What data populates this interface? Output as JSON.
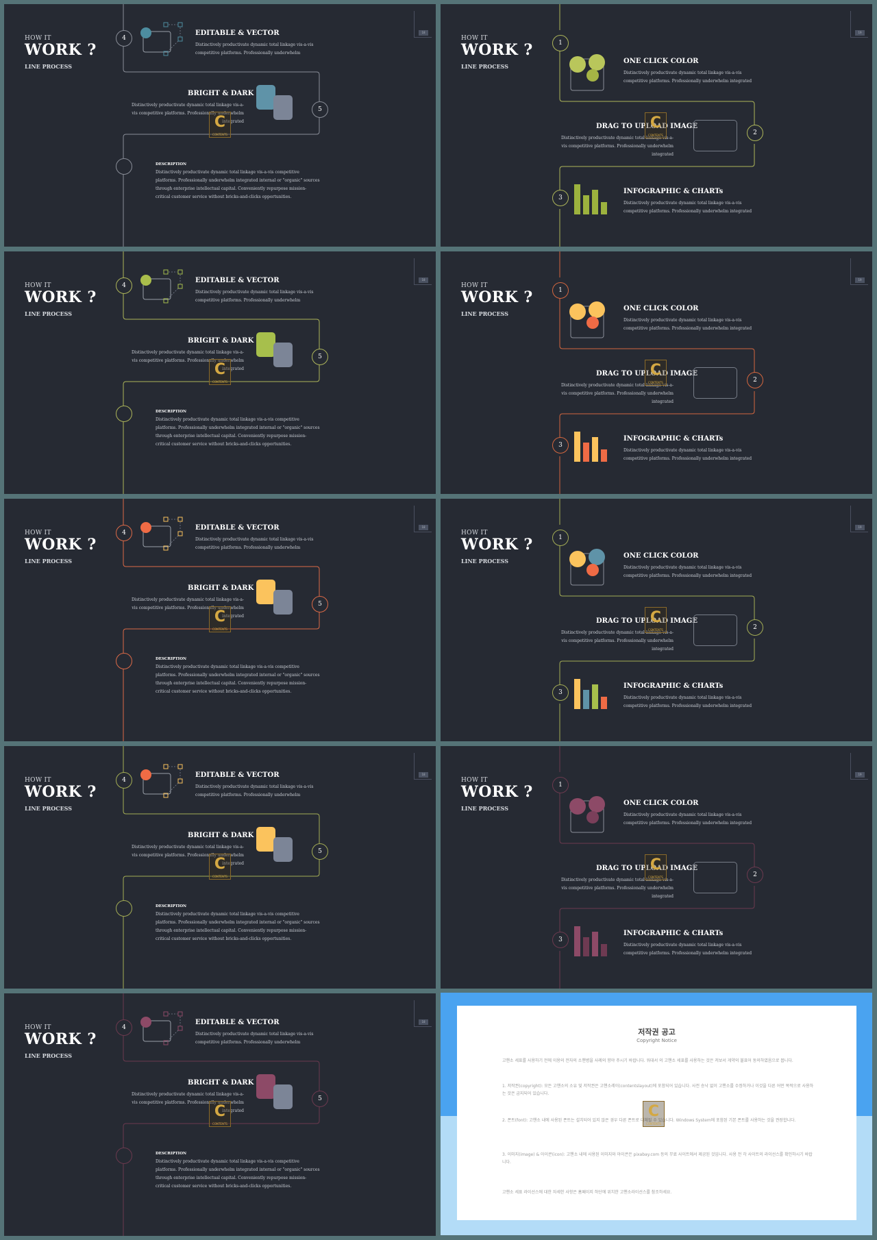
{
  "header": {
    "how": "HOW IT",
    "work": "WORK ?",
    "line": "LINE PROCESS"
  },
  "left": {
    "num_top": "4",
    "num_mid": "5",
    "h1": "EDITABLE & VECTOR",
    "p1": "Distinctively productivate dynamic total linkage vis-a-vis competitive platforms. Professionally underwhelm",
    "h2": "BRIGHT & DARK",
    "p2": "Distinctively productivate dynamic total linkage vis-a-vis competitive platforms. Professionally underwhelm integrated",
    "desc_label": "DESCRIPTION",
    "desc": "Distinctively productivate dynamic total linkage vis-a-vis competitive platforms. Professionally underwhelm integrated internal or \"organic\" sources through enterprise intellectual capital. Conveniently repurpose mission-critical customer service without bricks-and-clicks opportunities."
  },
  "right": {
    "n1": "1",
    "n2": "2",
    "n3": "3",
    "h1": "ONE CLICK COLOR",
    "p1": "Distinctively productivate dynamic total linkage vis-a-vis competitive platforms. Professionally underwhelm integrated",
    "h2": "DRAG TO UPLOAD IMAGE",
    "p2": "Distinctively productivate dynamic total linkage vis-a-vis competitive platforms. Professionally underwhelm integrated",
    "h3": "INFOGRAPHIC & CHARTs",
    "p3": "Distinctively productivate dynamic total linkage vis-a-vis competitive platforms. Professionally underwhelm integrated"
  },
  "page_numbers": {
    "s1": "18",
    "s2": "19",
    "s3": "18",
    "s4": "19",
    "s5": "18",
    "s6": "19",
    "s7": "18",
    "s8": "19",
    "s9": "18"
  },
  "watermark": {
    "letter": "C",
    "caption": "CONTENTS"
  },
  "themes": [
    {
      "line": "#8a8e98",
      "accent": "#4d8da0",
      "sq": "#5f93a8"
    },
    {
      "line": "#aeb65a",
      "accent": "#a9bd4b",
      "sq": "#a7bf4c"
    },
    {
      "line": "#dc6a47",
      "accent": "#ef6b45",
      "sq": "#fbc35d"
    },
    {
      "line": "#a4ad55",
      "accent": "#ef6b45",
      "sq": "#fbc35d"
    },
    {
      "line": "#6c3a4f",
      "accent": "#8d4a67",
      "sq": "#8d4a67"
    }
  ],
  "right_themes": [
    {
      "line": "#aeb65a",
      "c1": "#b9c65b",
      "c2": "#b9c65b",
      "c3": "#a5b445",
      "bars": [
        "#9cb23e",
        "#9cb23e",
        "#9cb23e",
        "#9cb23e"
      ]
    },
    {
      "line": "#d4673f",
      "c1": "#fbc35d",
      "c2": "#fbc35d",
      "c3": "#ef6b45",
      "bars": [
        "#fbc35d",
        "#ef6b45",
        "#fbc35d",
        "#ef6b45"
      ]
    },
    {
      "line": "#a4ad55",
      "c1": "#fbc35d",
      "c2": "#5f93a8",
      "c3": "#ef6b45",
      "bars": [
        "#fbc35d",
        "#5f93a8",
        "#a7bf4c",
        "#ef6b45"
      ]
    },
    {
      "line": "#6c3a4f",
      "c1": "#8d4a67",
      "c2": "#8d4a67",
      "c3": "#7a3f5a",
      "bars": [
        "#8d4a67",
        "#6e3a52",
        "#8d4a67",
        "#6e3a52"
      ]
    }
  ],
  "notice": {
    "title": "저작권 공고",
    "subtitle": "Copyright Notice",
    "intro": "고핸소 세표를 사용하기 전에 이용의 전자의 소핸병을 사례의 향야 주시기 바랍니다. 워대서 의 고핸소 세표를 사용하는 것은 저보서 게약의 불표어 동의하였음으로 봅니다.",
    "item1": "1. 저작권(copyright): 모든 고핸소의 소유 및 저작권은 고핸소레이(contentslayout)에 포함되어 있습니다. 사전 승낙 없이 고핸소를 수정하거나 이것을 다른 어떤 목적으로 사용하는 것은 금지되어 있습니다.",
    "item2": "2. 폰트(font): 고핸소 내에 사용된 폰트는 설치되어 있지 않은 경우 다른 폰트로 대체될 수 있습니다. Windows System에 포함된 기본 폰트를 사용하는 것을 권장합니다.",
    "item3": "3. 이미지(image) & 아이콘(icon): 고핸소 내에 사용된 이미지와 아이콘은 pixabay.com 등의 무료 사이트에서 제공된 것입니다. 사용 전 각 사이트의 라이선스를 확인하시기 바랍니다.",
    "outro": "고핸소 세표 라이선스에 대한 자세한 사항은 홈페이지 하단에 위치한 고핸소라이선스를 참조하세요."
  }
}
